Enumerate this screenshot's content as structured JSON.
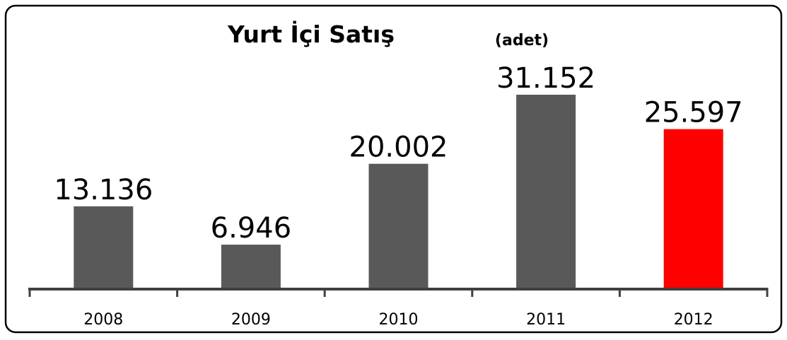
{
  "chart_data": {
    "type": "bar",
    "title": "Yurt İçi Satış",
    "subtitle": "(adet)",
    "categories": [
      "2008",
      "2009",
      "2010",
      "2011",
      "2012"
    ],
    "values": [
      13136,
      6946,
      20002,
      31152,
      25597
    ],
    "value_labels": [
      "13.136",
      "6.946",
      "20.002",
      "31.152",
      "25.597"
    ],
    "colors": [
      "#595959",
      "#595959",
      "#595959",
      "#595959",
      "#ff0000"
    ]
  }
}
